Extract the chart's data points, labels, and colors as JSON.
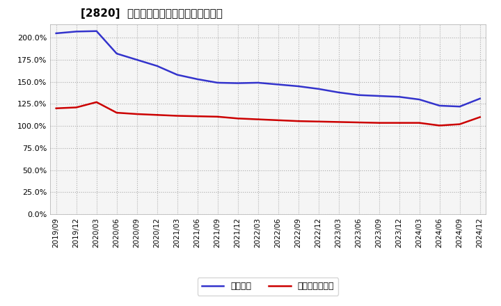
{
  "title": "[2820]  固定比率、固定長期適合率の推移",
  "x_labels": [
    "2019/09",
    "2019/12",
    "2020/03",
    "2020/06",
    "2020/09",
    "2020/12",
    "2021/03",
    "2021/06",
    "2021/09",
    "2021/12",
    "2022/03",
    "2022/06",
    "2022/09",
    "2022/12",
    "2023/03",
    "2023/06",
    "2023/09",
    "2023/12",
    "2024/03",
    "2024/06",
    "2024/09",
    "2024/12"
  ],
  "fixed_ratio": [
    205.0,
    207.0,
    207.5,
    182.0,
    175.0,
    168.0,
    158.0,
    153.0,
    149.0,
    148.5,
    149.0,
    147.0,
    145.0,
    142.0,
    138.0,
    135.0,
    134.0,
    133.0,
    130.0,
    123.0,
    122.0,
    131.0
  ],
  "fixed_long_ratio": [
    120.0,
    121.0,
    127.0,
    115.0,
    113.5,
    112.5,
    111.5,
    111.0,
    110.5,
    108.5,
    107.5,
    106.5,
    105.5,
    105.0,
    104.5,
    104.0,
    103.5,
    103.5,
    103.5,
    100.5,
    102.0,
    110.0
  ],
  "fixed_ratio_color": "#3333cc",
  "fixed_long_ratio_color": "#cc0000",
  "background_color": "#ffffff",
  "plot_bg_color": "#f5f5f5",
  "grid_color": "#aaaaaa",
  "ylim": [
    0.0,
    215.0
  ],
  "yticks": [
    0.0,
    25.0,
    50.0,
    75.0,
    100.0,
    125.0,
    150.0,
    175.0,
    200.0
  ],
  "legend_fixed_ratio": "固定比率",
  "legend_fixed_long_ratio": "固定長期適合率"
}
